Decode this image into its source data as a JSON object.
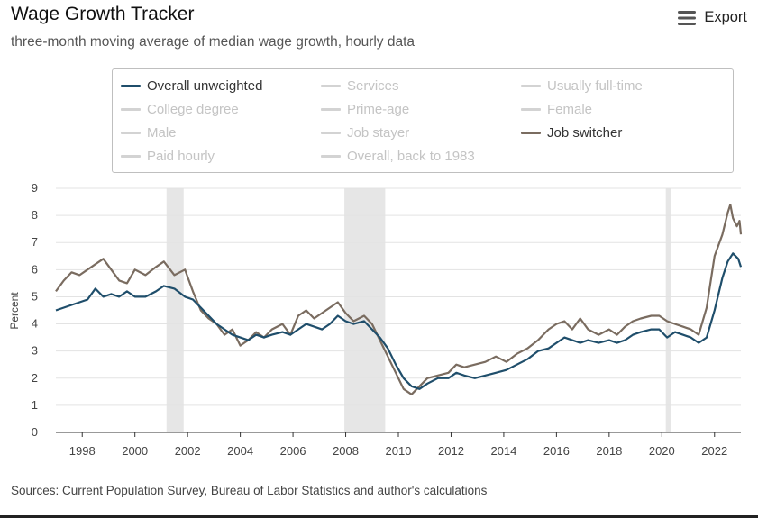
{
  "header": {
    "title": "Wage Growth Tracker",
    "subtitle": "three-month moving average of median wage growth, hourly data"
  },
  "toolbar": {
    "export_label": "Export",
    "export_icon": "hamburger-menu-icon"
  },
  "legend": {
    "items": [
      {
        "label": "Overall unweighted",
        "active": true,
        "color": "#1f4e6b"
      },
      {
        "label": "Services",
        "active": false
      },
      {
        "label": "Usually full-time",
        "active": false
      },
      {
        "label": "College degree",
        "active": false
      },
      {
        "label": "Prime-age",
        "active": false
      },
      {
        "label": "Female",
        "active": false
      },
      {
        "label": "Male",
        "active": false
      },
      {
        "label": "Job stayer",
        "active": false
      },
      {
        "label": "Job switcher",
        "active": true,
        "color": "#7a6c60"
      },
      {
        "label": "Paid hourly",
        "active": false
      },
      {
        "label": "Overall, back to 1983",
        "active": false
      }
    ]
  },
  "chart_data": {
    "type": "line",
    "ylabel": "Percent",
    "xlabel": "",
    "ylim": [
      0,
      9
    ],
    "xlim": [
      1997,
      2023
    ],
    "yticks": [
      "0",
      "1",
      "2",
      "3",
      "4",
      "5",
      "6",
      "7",
      "8",
      "9"
    ],
    "xticks": [
      "1998",
      "2000",
      "2002",
      "2004",
      "2006",
      "2008",
      "2010",
      "2012",
      "2014",
      "2016",
      "2018",
      "2020",
      "2022"
    ],
    "grid": true,
    "recessions": [
      [
        2001.2,
        2001.85
      ],
      [
        2007.95,
        2009.5
      ],
      [
        2020.15,
        2020.35
      ]
    ],
    "series": [
      {
        "name": "Overall unweighted",
        "color": "#1f4e6b",
        "points": [
          [
            1997.0,
            4.5
          ],
          [
            1997.3,
            4.6
          ],
          [
            1997.6,
            4.7
          ],
          [
            1997.9,
            4.8
          ],
          [
            1998.2,
            4.9
          ],
          [
            1998.5,
            5.3
          ],
          [
            1998.8,
            5.0
          ],
          [
            1999.1,
            5.1
          ],
          [
            1999.4,
            5.0
          ],
          [
            1999.7,
            5.2
          ],
          [
            2000.0,
            5.0
          ],
          [
            2000.4,
            5.0
          ],
          [
            2000.8,
            5.2
          ],
          [
            2001.1,
            5.4
          ],
          [
            2001.5,
            5.3
          ],
          [
            2001.9,
            5.0
          ],
          [
            2002.2,
            4.9
          ],
          [
            2002.5,
            4.6
          ],
          [
            2002.8,
            4.3
          ],
          [
            2003.1,
            4.0
          ],
          [
            2003.4,
            3.8
          ],
          [
            2003.7,
            3.6
          ],
          [
            2004.0,
            3.5
          ],
          [
            2004.3,
            3.4
          ],
          [
            2004.6,
            3.6
          ],
          [
            2004.9,
            3.5
          ],
          [
            2005.2,
            3.6
          ],
          [
            2005.6,
            3.7
          ],
          [
            2005.9,
            3.6
          ],
          [
            2006.2,
            3.8
          ],
          [
            2006.5,
            4.0
          ],
          [
            2006.8,
            3.9
          ],
          [
            2007.1,
            3.8
          ],
          [
            2007.4,
            4.0
          ],
          [
            2007.7,
            4.3
          ],
          [
            2008.0,
            4.1
          ],
          [
            2008.3,
            4.0
          ],
          [
            2008.7,
            4.1
          ],
          [
            2009.0,
            3.8
          ],
          [
            2009.3,
            3.5
          ],
          [
            2009.6,
            3.1
          ],
          [
            2009.9,
            2.5
          ],
          [
            2010.2,
            2.0
          ],
          [
            2010.5,
            1.7
          ],
          [
            2010.8,
            1.6
          ],
          [
            2011.1,
            1.8
          ],
          [
            2011.5,
            2.0
          ],
          [
            2011.9,
            2.0
          ],
          [
            2012.2,
            2.2
          ],
          [
            2012.5,
            2.1
          ],
          [
            2012.9,
            2.0
          ],
          [
            2013.3,
            2.1
          ],
          [
            2013.7,
            2.2
          ],
          [
            2014.1,
            2.3
          ],
          [
            2014.5,
            2.5
          ],
          [
            2014.9,
            2.7
          ],
          [
            2015.3,
            3.0
          ],
          [
            2015.7,
            3.1
          ],
          [
            2016.0,
            3.3
          ],
          [
            2016.3,
            3.5
          ],
          [
            2016.6,
            3.4
          ],
          [
            2016.9,
            3.3
          ],
          [
            2017.2,
            3.4
          ],
          [
            2017.6,
            3.3
          ],
          [
            2018.0,
            3.4
          ],
          [
            2018.3,
            3.3
          ],
          [
            2018.6,
            3.4
          ],
          [
            2018.9,
            3.6
          ],
          [
            2019.2,
            3.7
          ],
          [
            2019.6,
            3.8
          ],
          [
            2019.9,
            3.8
          ],
          [
            2020.2,
            3.5
          ],
          [
            2020.5,
            3.7
          ],
          [
            2020.8,
            3.6
          ],
          [
            2021.1,
            3.5
          ],
          [
            2021.4,
            3.3
          ],
          [
            2021.7,
            3.5
          ],
          [
            2022.0,
            4.5
          ],
          [
            2022.3,
            5.7
          ],
          [
            2022.5,
            6.3
          ],
          [
            2022.7,
            6.6
          ],
          [
            2022.9,
            6.4
          ],
          [
            2023.0,
            6.1
          ]
        ]
      },
      {
        "name": "Job switcher",
        "color": "#7a6c60",
        "points": [
          [
            1997.0,
            5.2
          ],
          [
            1997.3,
            5.6
          ],
          [
            1997.6,
            5.9
          ],
          [
            1997.9,
            5.8
          ],
          [
            1998.2,
            6.0
          ],
          [
            1998.5,
            6.2
          ],
          [
            1998.8,
            6.4
          ],
          [
            1999.1,
            6.0
          ],
          [
            1999.4,
            5.6
          ],
          [
            1999.7,
            5.5
          ],
          [
            2000.0,
            6.0
          ],
          [
            2000.4,
            5.8
          ],
          [
            2000.8,
            6.1
          ],
          [
            2001.1,
            6.3
          ],
          [
            2001.5,
            5.8
          ],
          [
            2001.9,
            6.0
          ],
          [
            2002.2,
            5.2
          ],
          [
            2002.5,
            4.5
          ],
          [
            2002.8,
            4.2
          ],
          [
            2003.1,
            4.0
          ],
          [
            2003.4,
            3.6
          ],
          [
            2003.7,
            3.8
          ],
          [
            2004.0,
            3.2
          ],
          [
            2004.3,
            3.4
          ],
          [
            2004.6,
            3.7
          ],
          [
            2004.9,
            3.5
          ],
          [
            2005.2,
            3.8
          ],
          [
            2005.6,
            4.0
          ],
          [
            2005.9,
            3.6
          ],
          [
            2006.2,
            4.3
          ],
          [
            2006.5,
            4.5
          ],
          [
            2006.8,
            4.2
          ],
          [
            2007.1,
            4.4
          ],
          [
            2007.4,
            4.6
          ],
          [
            2007.7,
            4.8
          ],
          [
            2008.0,
            4.4
          ],
          [
            2008.3,
            4.1
          ],
          [
            2008.7,
            4.3
          ],
          [
            2009.0,
            4.0
          ],
          [
            2009.3,
            3.4
          ],
          [
            2009.6,
            2.8
          ],
          [
            2009.9,
            2.2
          ],
          [
            2010.2,
            1.6
          ],
          [
            2010.5,
            1.4
          ],
          [
            2010.8,
            1.7
          ],
          [
            2011.1,
            2.0
          ],
          [
            2011.5,
            2.1
          ],
          [
            2011.9,
            2.2
          ],
          [
            2012.2,
            2.5
          ],
          [
            2012.5,
            2.4
          ],
          [
            2012.9,
            2.5
          ],
          [
            2013.3,
            2.6
          ],
          [
            2013.7,
            2.8
          ],
          [
            2014.1,
            2.6
          ],
          [
            2014.5,
            2.9
          ],
          [
            2014.9,
            3.1
          ],
          [
            2015.3,
            3.4
          ],
          [
            2015.7,
            3.8
          ],
          [
            2016.0,
            4.0
          ],
          [
            2016.3,
            4.1
          ],
          [
            2016.6,
            3.8
          ],
          [
            2016.9,
            4.2
          ],
          [
            2017.2,
            3.8
          ],
          [
            2017.6,
            3.6
          ],
          [
            2018.0,
            3.8
          ],
          [
            2018.3,
            3.6
          ],
          [
            2018.6,
            3.9
          ],
          [
            2018.9,
            4.1
          ],
          [
            2019.2,
            4.2
          ],
          [
            2019.6,
            4.3
          ],
          [
            2019.9,
            4.3
          ],
          [
            2020.2,
            4.1
          ],
          [
            2020.5,
            4.0
          ],
          [
            2020.8,
            3.9
          ],
          [
            2021.1,
            3.8
          ],
          [
            2021.4,
            3.6
          ],
          [
            2021.7,
            4.6
          ],
          [
            2022.0,
            6.5
          ],
          [
            2022.3,
            7.3
          ],
          [
            2022.5,
            8.1
          ],
          [
            2022.6,
            8.4
          ],
          [
            2022.7,
            7.9
          ],
          [
            2022.85,
            7.6
          ],
          [
            2022.95,
            7.8
          ],
          [
            2023.0,
            7.3
          ]
        ]
      }
    ]
  },
  "footer": {
    "source": "Sources: Current Population Survey, Bureau of Labor Statistics and author's calculations"
  }
}
